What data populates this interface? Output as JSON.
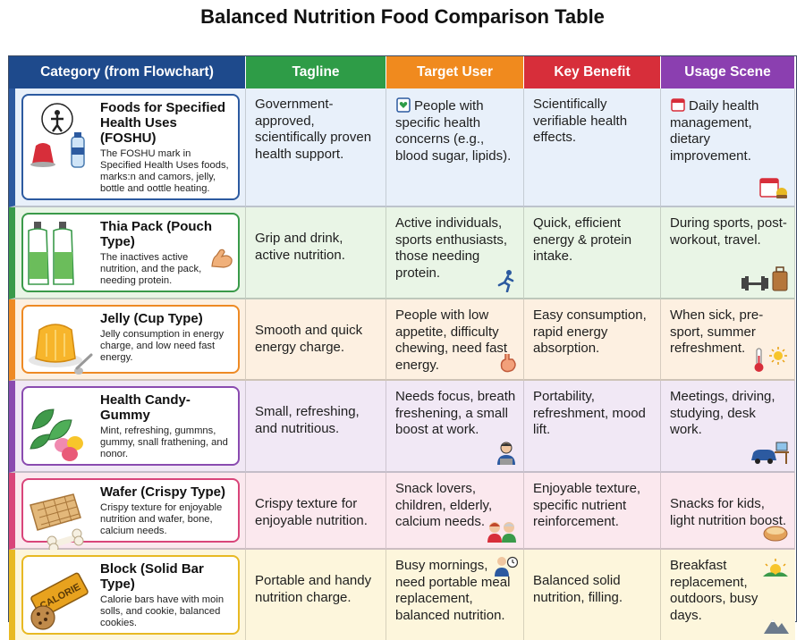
{
  "title": "Balanced Nutrition Food Comparison Table",
  "header": {
    "category": "Category (from Flowchart)",
    "tagline": "Tagline",
    "target": "Target User",
    "benefit": "Key Benefit",
    "scene": "Usage Scene"
  },
  "colors": {
    "header_category": "#1e4a8c",
    "header_tagline": "#2e9c47",
    "header_target": "#f08a1e",
    "header_benefit": "#d72e3a",
    "header_scene": "#8b3fb0"
  },
  "rows": [
    {
      "name": "Foods for Specified Health Uses (FOSHU)",
      "desc": "The FOSHU mark in Specified Health Uses foods, marks:n and camors, jelly, bottle and oottle heating.",
      "tagline": "Government-approved, scientifically proven health support.",
      "target": "People with specific health concerns (e.g., blood sugar, lipids).",
      "benefit": "Scientifically verifiable health effects.",
      "scene": "Daily health management, dietary improvement.",
      "icon": "foshu-mark-jelly-bottle",
      "accent": "#2c5aa0",
      "bg": "#e8f0fa"
    },
    {
      "name": "Thia Pack (Pouch Type)",
      "desc": "The inactives active nutrition, and the pack, needing protein.",
      "tagline": "Grip and drink, active nutrition.",
      "target": "Active individuals, sports enthusiasts, those needing protein.",
      "benefit": "Quick, efficient energy & protein intake.",
      "scene": "During sports, post-workout, travel.",
      "icon": "pouch-drink-icon",
      "accent": "#3a9a4a",
      "bg": "#e9f5e6"
    },
    {
      "name": "Jelly (Cup Type)",
      "desc": "Jelly consumption in energy charge, and low need fast energy.",
      "tagline": "Smooth and quick energy charge.",
      "target": "People with low appetite, difficulty chewing, need fast energy.",
      "benefit": "Easy consumption, rapid energy absorption.",
      "scene": "When sick, pre-sport, summer refreshment.",
      "icon": "jelly-cup-icon",
      "accent": "#ee8a24",
      "bg": "#fdf0e1"
    },
    {
      "name": "Health Candy-Gummy",
      "desc": "Mint, refreshing, gummns, gummy, snall frathening, and nonor.",
      "tagline": "Small, refreshing, and nutritious.",
      "target": "Needs focus, breath freshening, a small boost at work.",
      "benefit": "Portability, refreshment, mood lift.",
      "scene": "Meetings, driving, studying, desk work.",
      "icon": "mint-gummy-icon",
      "accent": "#8a4bb0",
      "bg": "#f1e8f5"
    },
    {
      "name": "Wafer (Crispy Type)",
      "desc": "Crispy texture for enjoyable nutrition and wafer, bone, calcium needs.",
      "tagline": "Crispy texture for enjoyable nutrition.",
      "target": "Snack lovers, children, elderly, calcium needs.",
      "benefit": "Enjoyable texture, specific nutrient reinforcement.",
      "scene": "Snacks for kids, light nutrition boost.",
      "icon": "wafer-bone-icon",
      "accent": "#d9457a",
      "bg": "#fbe8ee"
    },
    {
      "name": "Block (Solid Bar Type)",
      "desc": "Calorie bars have with moin solls, and cookie, balanced cookies.",
      "tagline": "Portable and handy nutrition charge.",
      "target": "Busy mornings, need portable meal replacement, balanced nutrition.",
      "benefit": "Balanced solid nutrition, filling.",
      "scene": "Breakfast replacement, outdoors, busy days.",
      "icon": "calorie-bar-icon",
      "bar_label": "CALORIE",
      "accent": "#e8b923",
      "bg": "#fdf6dc"
    }
  ]
}
